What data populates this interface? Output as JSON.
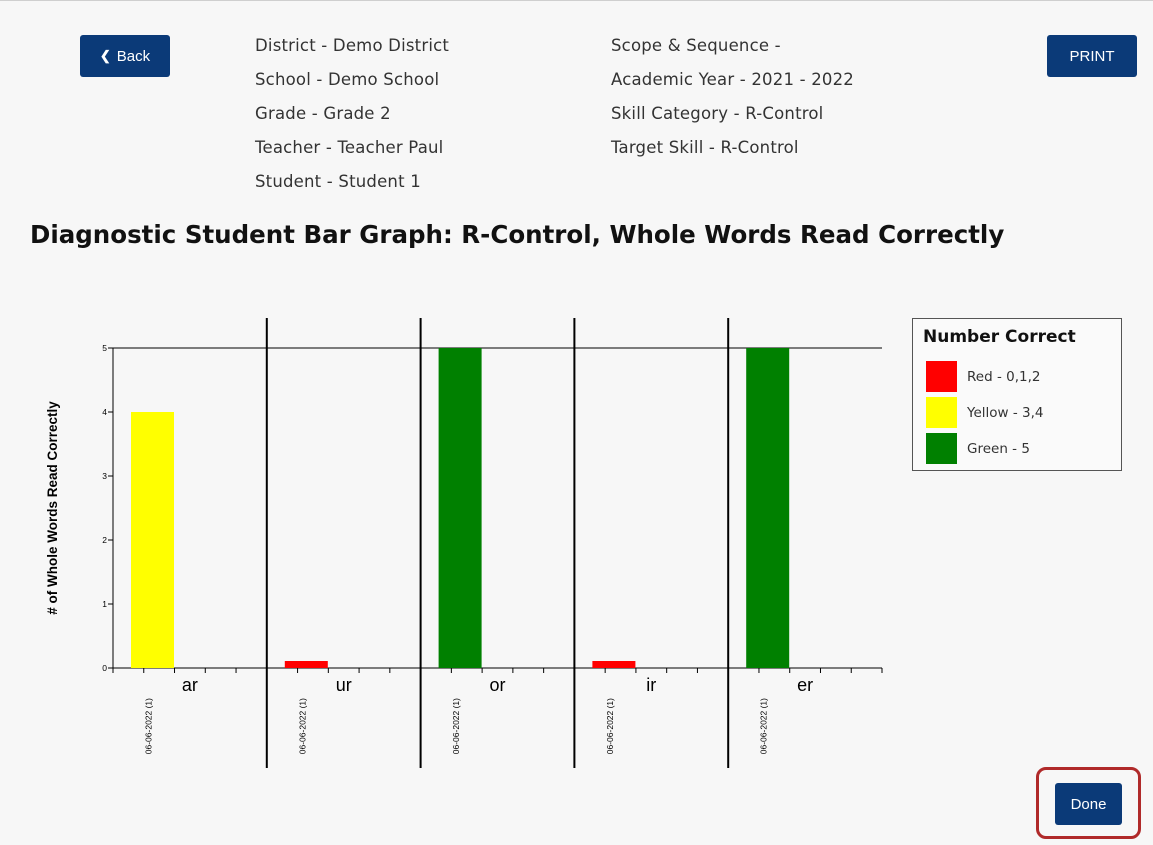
{
  "header": {
    "back_label": "Back",
    "print_label": "PRINT",
    "info_left": [
      "District - Demo District",
      "School - Demo School",
      "Grade - Grade 2",
      "Teacher - Teacher Paul",
      "Student - Student 1"
    ],
    "info_right": [
      "Scope & Sequence -",
      "Academic Year - 2021 - 2022",
      "Skill Category - R-Control",
      "Target Skill - R-Control"
    ]
  },
  "footer": {
    "done_label": "Done"
  },
  "colors": {
    "red": "#ff0000",
    "yellow": "#ffff00",
    "green": "#008000",
    "button": "#0b3a78"
  },
  "legend": {
    "title": "Number Correct",
    "items": [
      {
        "label": "Red - 0,1,2",
        "color": "#ff0000"
      },
      {
        "label": "Yellow - 3,4",
        "color": "#ffff00"
      },
      {
        "label": "Green - 5",
        "color": "#008000"
      }
    ]
  },
  "chart_data": {
    "type": "bar",
    "title": "Diagnostic Student Bar Graph: R-Control, Whole Words Read Correctly",
    "ylabel": "# of Whole Words Read Correctly",
    "xlabel": "",
    "ylim": [
      0,
      5
    ],
    "yticks": [
      "0",
      "1",
      "2",
      "3",
      "4",
      "5"
    ],
    "grid": false,
    "legend_position": "right",
    "groups": [
      {
        "category": "ar",
        "date_label": "06-06-2022 (1)",
        "value": 4,
        "color": "#ffff00"
      },
      {
        "category": "ur",
        "date_label": "06-06-2022 (1)",
        "value": 0,
        "color": "#ff0000"
      },
      {
        "category": "or",
        "date_label": "06-06-2022 (1)",
        "value": 5,
        "color": "#008000"
      },
      {
        "category": "ir",
        "date_label": "06-06-2022 (1)",
        "value": 0,
        "color": "#ff0000"
      },
      {
        "category": "er",
        "date_label": "06-06-2022 (1)",
        "value": 5,
        "color": "#008000"
      }
    ]
  }
}
